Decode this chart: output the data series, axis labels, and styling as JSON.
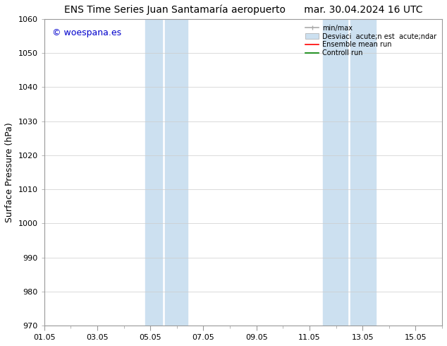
{
  "title_left": "ENS Time Series Juan Santamaría aeropuerto",
  "title_right": "mar. 30.04.2024 16 UTC",
  "ylabel": "Surface Pressure (hPa)",
  "ylim": [
    970,
    1060
  ],
  "yticks": [
    970,
    980,
    990,
    1000,
    1010,
    1020,
    1030,
    1040,
    1050,
    1060
  ],
  "xlim": [
    0,
    15
  ],
  "xtick_labels": [
    "01.05",
    "03.05",
    "05.05",
    "07.05",
    "09.05",
    "11.05",
    "13.05",
    "15.05"
  ],
  "xtick_positions": [
    0,
    2,
    4,
    6,
    8,
    10,
    12,
    14
  ],
  "shaded_regions": [
    {
      "xmin": 3.8,
      "xmax": 4.5,
      "color": "#ddeeff",
      "alpha": 1.0
    },
    {
      "xmin": 4.5,
      "xmax": 5.5,
      "color": "#ddeeff",
      "alpha": 1.0
    },
    {
      "xmin": 10.5,
      "xmax": 11.5,
      "color": "#ddeeff",
      "alpha": 1.0
    },
    {
      "xmin": 11.5,
      "xmax": 12.5,
      "color": "#ddeeff",
      "alpha": 1.0
    }
  ],
  "watermark_text": "© woespana.es",
  "watermark_color": "#0000cc",
  "background_color": "#ffffff",
  "legend_minmax_color": "#aaaaaa",
  "legend_std_color": "#cce0f0",
  "legend_ens_color": "red",
  "legend_ctrl_color": "green",
  "legend_label_minmax": "min/max",
  "legend_label_std": "Desviaci  acute;n est  acute;ndar",
  "legend_label_ens": "Ensemble mean run",
  "legend_label_ctrl": "Controll run",
  "grid_color": "#cccccc",
  "spine_color": "#999999",
  "title_fontsize": 10,
  "label_fontsize": 9,
  "tick_fontsize": 8,
  "legend_fontsize": 7,
  "watermark_fontsize": 9
}
